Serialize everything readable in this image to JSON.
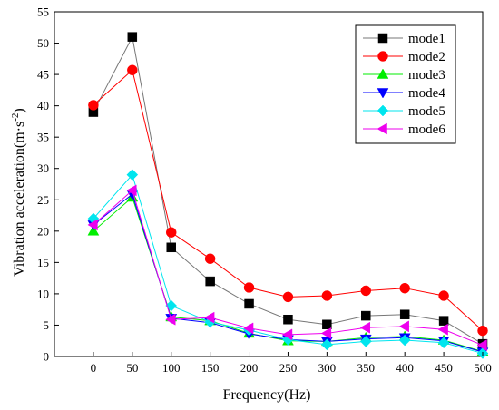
{
  "chart_data": {
    "type": "line",
    "xlabel": "Frequency(Hz)",
    "ylabel_main": "Vibration acceleration(m·s",
    "ylabel_sup": "-2",
    "ylabel_close": ")",
    "xlim": [
      -50,
      500
    ],
    "ylim": [
      0,
      55
    ],
    "x": [
      0,
      50,
      100,
      150,
      200,
      250,
      300,
      350,
      400,
      450,
      500
    ],
    "x_ticks": [
      0,
      50,
      100,
      150,
      200,
      250,
      300,
      350,
      400,
      450,
      500
    ],
    "x_tick_labels": [
      "0",
      "50",
      "100",
      "150",
      "200",
      "250",
      "300",
      "350",
      "400",
      "450",
      "500"
    ],
    "y_ticks": [
      0,
      5,
      10,
      15,
      20,
      25,
      30,
      35,
      40,
      45,
      50,
      55
    ],
    "y_tick_labels": [
      "0",
      "5",
      "10",
      "15",
      "20",
      "25",
      "30",
      "35",
      "40",
      "45",
      "50",
      "55"
    ],
    "grid": false,
    "legend_position": "top-right",
    "series": [
      {
        "name": "mode1",
        "color": "#000000",
        "marker": "square",
        "values": [
          39.0,
          51.0,
          17.4,
          12.0,
          8.4,
          5.9,
          5.1,
          6.5,
          6.7,
          5.7,
          2.0
        ]
      },
      {
        "name": "mode2",
        "color": "#ff0000",
        "marker": "circle",
        "values": [
          40.1,
          45.7,
          19.8,
          15.6,
          11.0,
          9.5,
          9.7,
          10.5,
          10.9,
          9.7,
          4.1
        ]
      },
      {
        "name": "mode3",
        "color": "#00ee00",
        "marker": "triangle-up",
        "values": [
          20.0,
          25.4,
          6.3,
          5.7,
          3.7,
          2.5,
          2.4,
          3.0,
          3.2,
          2.6,
          0.8
        ]
      },
      {
        "name": "mode4",
        "color": "#0000ff",
        "marker": "triangle-down",
        "values": [
          21.0,
          25.9,
          6.1,
          5.4,
          3.6,
          2.7,
          2.4,
          2.8,
          3.0,
          2.5,
          0.7
        ]
      },
      {
        "name": "mode5",
        "color": "#00e5ee",
        "marker": "diamond",
        "values": [
          22.0,
          29.0,
          8.1,
          5.5,
          4.2,
          2.7,
          1.9,
          2.4,
          2.6,
          2.2,
          0.5
        ]
      },
      {
        "name": "mode6",
        "color": "#ee00ee",
        "marker": "triangle-left",
        "values": [
          21.0,
          26.5,
          5.9,
          6.2,
          4.5,
          3.5,
          3.7,
          4.6,
          4.8,
          4.3,
          1.8
        ]
      }
    ]
  }
}
